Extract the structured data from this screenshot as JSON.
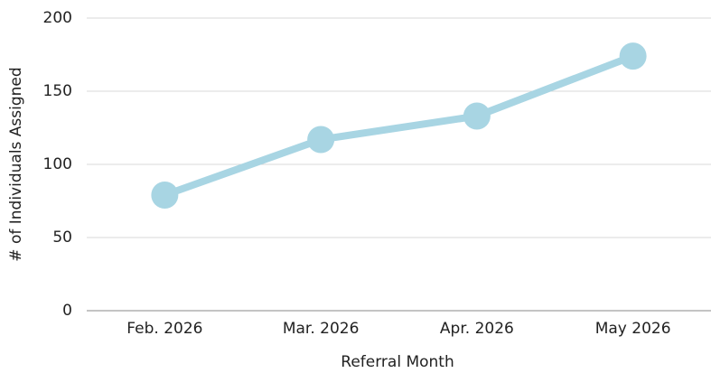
{
  "chart_data": {
    "type": "line",
    "categories": [
      "Feb. 2026",
      "Mar. 2026",
      "Apr. 2026",
      "May 2026"
    ],
    "series": [
      {
        "name": "# of Individuals Assigned",
        "color": "#a8d5e3",
        "values": [
          79,
          117,
          133,
          174
        ]
      }
    ],
    "x_label": "Referral Month",
    "y_label": "# of Individuals Assigned",
    "ylim": [
      0,
      200
    ],
    "yticks": [
      0,
      50,
      100,
      150,
      200
    ],
    "grid": true
  }
}
